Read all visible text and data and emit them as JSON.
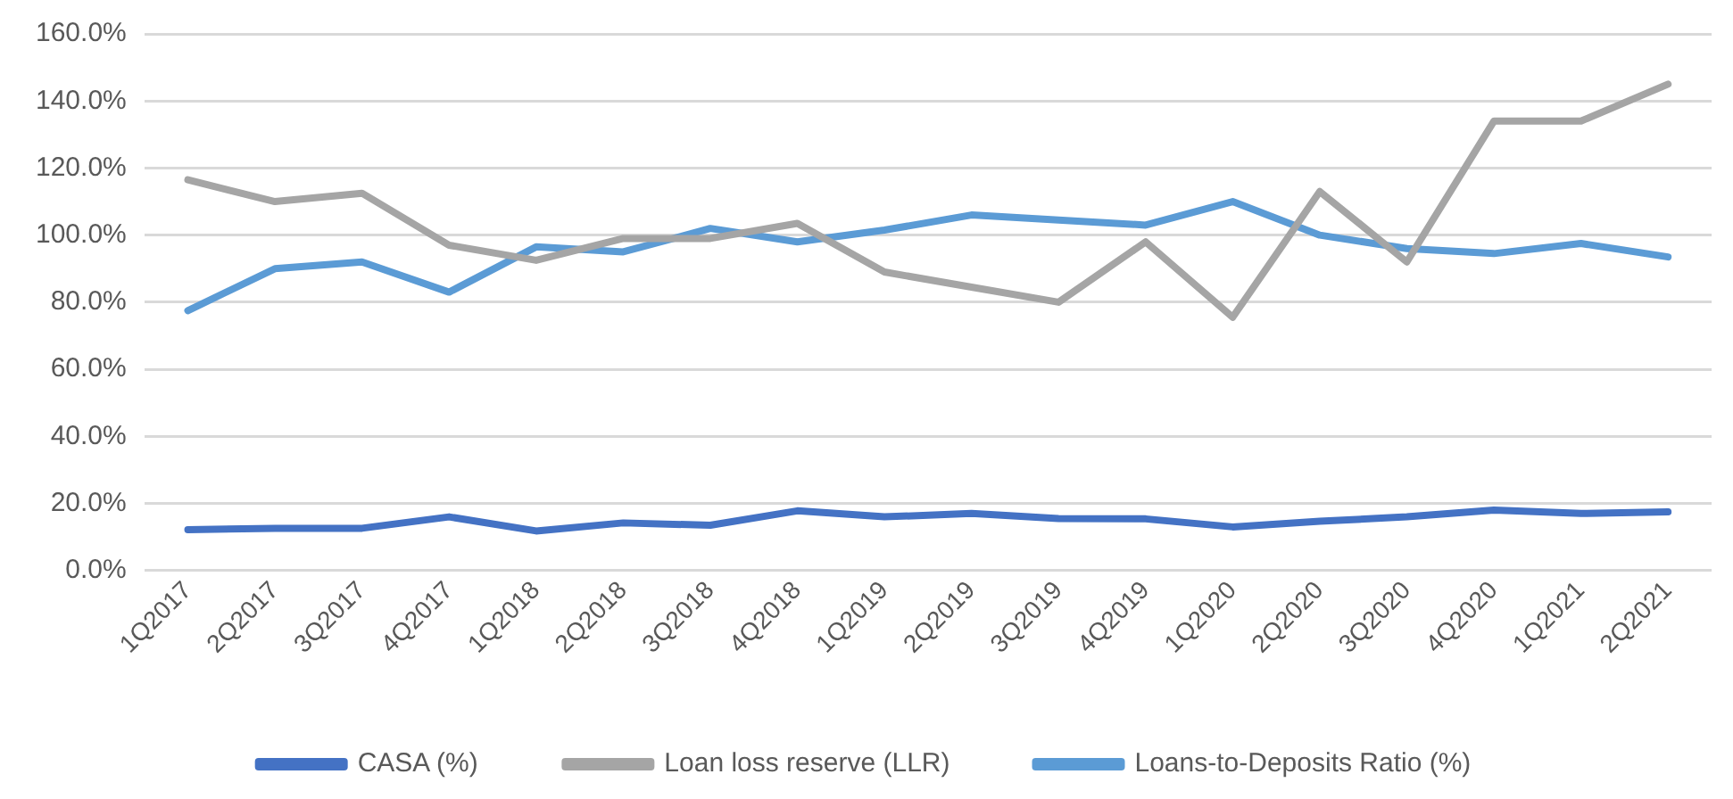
{
  "chart_data": {
    "type": "line",
    "categories": [
      "1Q2017",
      "2Q2017",
      "3Q2017",
      "4Q2017",
      "1Q2018",
      "2Q2018",
      "3Q2018",
      "4Q2018",
      "1Q2019",
      "2Q2019",
      "3Q2019",
      "4Q2019",
      "1Q2020",
      "2Q2020",
      "3Q2020",
      "4Q2020",
      "1Q2021",
      "2Q2021"
    ],
    "series": [
      {
        "name": "CASA (%)",
        "color": "#4472c4",
        "values": [
          12.2,
          12.6,
          12.6,
          16,
          11.8,
          14.2,
          13.5,
          17.8,
          16,
          17,
          15.5,
          15.4,
          13,
          14.7,
          16,
          18,
          17,
          17.5
        ]
      },
      {
        "name": "Loan loss reserve (LLR)",
        "color": "#a5a5a5",
        "values": [
          116.5,
          110,
          112.5,
          97,
          92.5,
          99,
          99,
          103.5,
          89,
          84.5,
          80,
          98,
          75.5,
          113,
          92,
          134,
          134,
          145
        ]
      },
      {
        "name": "Loans-to-Deposits Ratio (%)",
        "color": "#5b9bd5",
        "values": [
          77.5,
          90,
          92,
          83,
          96.5,
          95,
          102,
          98,
          101.5,
          106,
          104.5,
          103,
          110,
          100,
          96,
          94.5,
          97.5,
          93.5
        ]
      }
    ],
    "ylim": [
      0,
      160
    ],
    "yticks": [
      {
        "value": 0,
        "label": "0.0%"
      },
      {
        "value": 20,
        "label": "20.0%"
      },
      {
        "value": 40,
        "label": "40.0%"
      },
      {
        "value": 60,
        "label": "60.0%"
      },
      {
        "value": 80,
        "label": "80.0%"
      },
      {
        "value": 100,
        "label": "100.0%"
      },
      {
        "value": 120,
        "label": "120.0%"
      },
      {
        "value": 140,
        "label": "140.0%"
      },
      {
        "value": 160,
        "label": "160.0%"
      }
    ],
    "grid": "y",
    "legend": "bottom",
    "marker": "none",
    "line_style": "solid"
  }
}
